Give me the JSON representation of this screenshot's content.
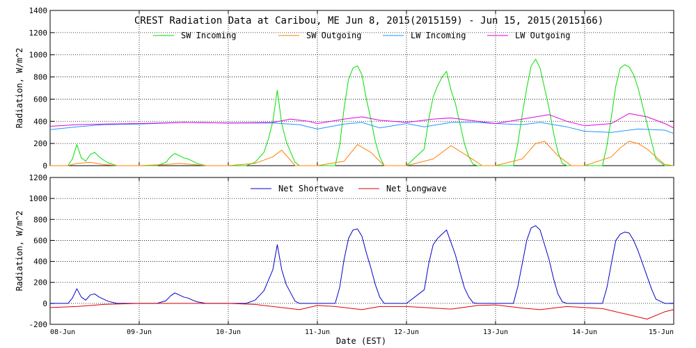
{
  "title": "CREST Radiation Data at Caribou, ME   Jun  8, 2015(2015159) - Jun 15, 2015(2015166)",
  "xlabel": "Date (EST)",
  "x_ticks": [
    "08-Jun",
    "09-Jun",
    "10-Jun",
    "11-Jun",
    "12-Jun",
    "13-Jun",
    "14-Jun",
    "15-Jun"
  ],
  "chart_data": [
    {
      "type": "line",
      "ylabel": "Radiation, W/m^2",
      "ylim": [
        0,
        1400
      ],
      "yticks": [
        0,
        200,
        400,
        600,
        800,
        1000,
        1200,
        1400
      ],
      "xlim": [
        0,
        7
      ],
      "grid": true,
      "legend_placement": "top-center",
      "series": [
        {
          "name": "SW Incoming",
          "color": "#00e000",
          "x": [
            0,
            0.2,
            0.25,
            0.3,
            0.35,
            0.4,
            0.45,
            0.5,
            0.55,
            0.6,
            0.65,
            0.75,
            1,
            1.2,
            1.3,
            1.35,
            1.4,
            1.45,
            1.5,
            1.55,
            1.6,
            1.65,
            1.75,
            2,
            2.2,
            2.3,
            2.4,
            2.45,
            2.5,
            2.55,
            2.6,
            2.65,
            2.7,
            2.75,
            2.8,
            2.9,
            3,
            3.2,
            3.25,
            3.3,
            3.35,
            3.4,
            3.45,
            3.5,
            3.55,
            3.6,
            3.65,
            3.7,
            3.75,
            3.8,
            3.9,
            4,
            4.2,
            4.25,
            4.3,
            4.35,
            4.4,
            4.45,
            4.5,
            4.55,
            4.6,
            4.65,
            4.7,
            4.75,
            4.8,
            4.9,
            5,
            5.2,
            5.25,
            5.3,
            5.35,
            5.4,
            5.45,
            5.5,
            5.55,
            5.6,
            5.65,
            5.7,
            5.75,
            5.8,
            5.9,
            6,
            6.2,
            6.25,
            6.3,
            6.35,
            6.4,
            6.45,
            6.5,
            6.55,
            6.6,
            6.65,
            6.7,
            6.75,
            6.8,
            6.9,
            7
          ],
          "values": [
            0,
            0,
            60,
            190,
            70,
            40,
            100,
            120,
            80,
            50,
            25,
            0,
            0,
            0,
            30,
            80,
            110,
            90,
            70,
            60,
            40,
            20,
            0,
            0,
            0,
            30,
            120,
            240,
            400,
            680,
            380,
            220,
            120,
            30,
            0,
            0,
            0,
            0,
            180,
            520,
            780,
            880,
            900,
            820,
            600,
            420,
            220,
            80,
            0,
            0,
            0,
            0,
            150,
            420,
            620,
            720,
            800,
            850,
            680,
            560,
            380,
            200,
            80,
            10,
            0,
            0,
            0,
            0,
            200,
            460,
            700,
            900,
            960,
            880,
            700,
            520,
            300,
            120,
            20,
            0,
            0,
            0,
            0,
            180,
            440,
            720,
            880,
            910,
            890,
            820,
            700,
            540,
            380,
            220,
            60,
            0,
            0
          ]
        },
        {
          "name": "SW Outgoing",
          "color": "#ff8000",
          "x": [
            0,
            0.2,
            0.3,
            0.45,
            0.6,
            0.75,
            1,
            1.3,
            1.45,
            1.6,
            1.75,
            2,
            2.3,
            2.5,
            2.6,
            2.75,
            3,
            3.3,
            3.45,
            3.6,
            3.75,
            4,
            4.3,
            4.5,
            4.7,
            4.85,
            5,
            5.3,
            5.45,
            5.55,
            5.7,
            5.85,
            6,
            6.3,
            6.4,
            6.5,
            6.6,
            6.7,
            6.8,
            6.9,
            7
          ],
          "values": [
            0,
            0,
            20,
            30,
            10,
            0,
            0,
            10,
            20,
            10,
            0,
            0,
            20,
            80,
            140,
            0,
            0,
            40,
            190,
            120,
            0,
            0,
            60,
            180,
            80,
            0,
            0,
            60,
            200,
            220,
            90,
            0,
            0,
            80,
            160,
            220,
            200,
            150,
            80,
            10,
            0
          ]
        },
        {
          "name": "LW Incoming",
          "color": "#1e96ff",
          "x": [
            0,
            0.3,
            0.6,
            1,
            1.5,
            2,
            2.5,
            2.8,
            3,
            3.3,
            3.5,
            3.7,
            4,
            4.2,
            4.5,
            4.8,
            5,
            5.3,
            5.5,
            5.8,
            6,
            6.3,
            6.6,
            6.9,
            7
          ],
          "values": [
            325,
            350,
            370,
            375,
            390,
            385,
            385,
            370,
            330,
            375,
            390,
            340,
            380,
            350,
            390,
            390,
            380,
            370,
            390,
            350,
            310,
            300,
            330,
            320,
            290
          ]
        },
        {
          "name": "LW Outgoing",
          "color": "#e000e0",
          "x": [
            0,
            0.3,
            0.6,
            1,
            1.5,
            2,
            2.5,
            2.7,
            2.9,
            3,
            3.3,
            3.5,
            3.7,
            4,
            4.3,
            4.5,
            4.8,
            5,
            5.3,
            5.6,
            5.8,
            6,
            6.3,
            6.5,
            6.7,
            6.9,
            7
          ],
          "values": [
            355,
            370,
            375,
            380,
            390,
            385,
            390,
            420,
            400,
            380,
            420,
            440,
            410,
            390,
            420,
            430,
            400,
            380,
            420,
            460,
            400,
            360,
            380,
            470,
            440,
            380,
            340
          ]
        }
      ]
    },
    {
      "type": "line",
      "ylabel": "Radiation, W/m^2",
      "ylim": [
        -200,
        1200
      ],
      "yticks": [
        -200,
        0,
        200,
        400,
        600,
        800,
        1000,
        1200
      ],
      "xlim": [
        0,
        7
      ],
      "grid": true,
      "legend_placement": "top-center",
      "series": [
        {
          "name": "Net Shortwave",
          "color": "#0000c8",
          "x": [
            0,
            0.2,
            0.25,
            0.3,
            0.35,
            0.4,
            0.45,
            0.5,
            0.55,
            0.6,
            0.65,
            0.75,
            1,
            1.2,
            1.3,
            1.35,
            1.4,
            1.45,
            1.5,
            1.55,
            1.6,
            1.65,
            1.75,
            2,
            2.2,
            2.3,
            2.4,
            2.45,
            2.5,
            2.55,
            2.6,
            2.65,
            2.7,
            2.75,
            2.8,
            2.9,
            3,
            3.2,
            3.25,
            3.3,
            3.35,
            3.4,
            3.45,
            3.5,
            3.55,
            3.6,
            3.65,
            3.7,
            3.75,
            3.8,
            3.9,
            4,
            4.2,
            4.25,
            4.3,
            4.35,
            4.4,
            4.45,
            4.5,
            4.55,
            4.6,
            4.65,
            4.7,
            4.75,
            4.8,
            4.9,
            5,
            5.2,
            5.25,
            5.3,
            5.35,
            5.4,
            5.45,
            5.5,
            5.55,
            5.6,
            5.65,
            5.7,
            5.75,
            5.8,
            5.9,
            6,
            6.2,
            6.25,
            6.3,
            6.35,
            6.4,
            6.45,
            6.5,
            6.55,
            6.6,
            6.65,
            6.7,
            6.75,
            6.8,
            6.9,
            7
          ],
          "values": [
            0,
            0,
            50,
            140,
            60,
            30,
            80,
            90,
            60,
            40,
            20,
            0,
            0,
            0,
            25,
            70,
            100,
            80,
            60,
            50,
            30,
            15,
            0,
            0,
            0,
            30,
            120,
            220,
            320,
            560,
            320,
            180,
            100,
            20,
            0,
            0,
            0,
            0,
            150,
            420,
            620,
            700,
            710,
            640,
            480,
            340,
            180,
            60,
            0,
            0,
            0,
            0,
            130,
            380,
            560,
            620,
            660,
            700,
            580,
            460,
            300,
            150,
            60,
            5,
            0,
            0,
            0,
            0,
            160,
            380,
            600,
            720,
            740,
            700,
            560,
            420,
            240,
            90,
            15,
            0,
            0,
            0,
            0,
            150,
            380,
            600,
            660,
            680,
            670,
            600,
            500,
            380,
            260,
            140,
            40,
            0,
            0
          ]
        },
        {
          "name": "Net Longwave",
          "color": "#e00000",
          "x": [
            0,
            0.3,
            0.6,
            1,
            1.5,
            2,
            2.3,
            2.6,
            2.8,
            3,
            3.2,
            3.5,
            3.7,
            4,
            4.2,
            4.5,
            4.8,
            5,
            5.3,
            5.5,
            5.8,
            6,
            6.2,
            6.5,
            6.7,
            6.9,
            7
          ],
          "values": [
            -40,
            -30,
            -10,
            0,
            0,
            0,
            -10,
            -40,
            -60,
            -20,
            -30,
            -60,
            -30,
            -30,
            -40,
            -55,
            -20,
            -15,
            -45,
            -60,
            -30,
            -40,
            -50,
            -110,
            -150,
            -80,
            -60
          ]
        }
      ]
    }
  ]
}
